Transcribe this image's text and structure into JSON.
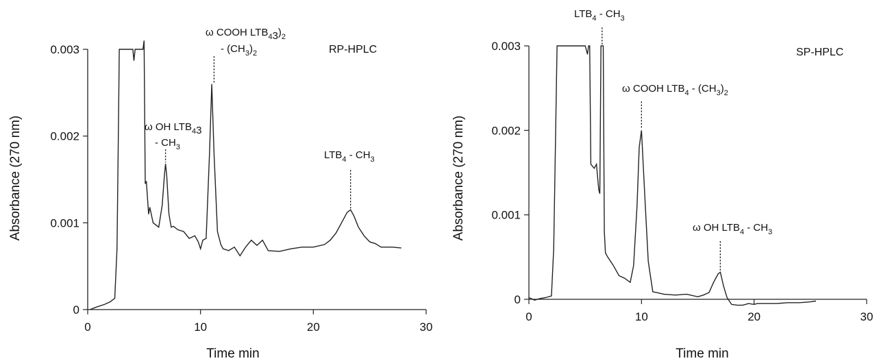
{
  "chart_data": [
    {
      "type": "line",
      "title": "RP-HPLC",
      "xlabel": "Time min",
      "ylabel": "Absorbance (270 nm)",
      "xlim": [
        0,
        30
      ],
      "ylim": [
        0,
        0.003
      ],
      "xticks": [
        "0",
        "10",
        "20",
        "30"
      ],
      "yticks": [
        "0",
        "0.001",
        "0.002",
        "0.003"
      ],
      "grid": false,
      "legend": "none",
      "line_color": "#222222",
      "series": [
        {
          "x": [
            0.2,
            0.8,
            1.5,
            2.0,
            2.4,
            2.6,
            2.75,
            2.8,
            3.0,
            3.5,
            4.0,
            4.1,
            4.2,
            4.3,
            4.6,
            4.9,
            5.0,
            5.1,
            5.2,
            5.4,
            5.5,
            5.8,
            6.0,
            6.3,
            6.6,
            6.8,
            6.9,
            7.0,
            7.2,
            7.4,
            7.6,
            8.0,
            8.5,
            9.0,
            9.5,
            9.8,
            10.0,
            10.2,
            10.5,
            10.8,
            11.0,
            11.2,
            11.5,
            11.8,
            12.0,
            12.5,
            13.0,
            13.5,
            14.0,
            14.5,
            15.0,
            15.5,
            16.0,
            17.0,
            18.0,
            19.0,
            20.0,
            21.0,
            21.5,
            22.0,
            22.5,
            23.0,
            23.3,
            23.6,
            24.0,
            24.5,
            25.0,
            25.5,
            26.0,
            27.0,
            27.8
          ],
          "y": [
            0.0,
            3e-05,
            6e-05,
            9e-05,
            0.00013,
            0.0007,
            0.0024,
            0.003,
            0.003,
            0.003,
            0.003,
            0.00287,
            0.003,
            0.003,
            0.003,
            0.003,
            0.0031,
            0.00145,
            0.00148,
            0.0011,
            0.00118,
            0.001,
            0.00098,
            0.00095,
            0.0012,
            0.00155,
            0.00168,
            0.00155,
            0.0011,
            0.00095,
            0.00096,
            0.00092,
            0.0009,
            0.00082,
            0.00085,
            0.00078,
            0.0007,
            0.0008,
            0.00082,
            0.0018,
            0.0026,
            0.0018,
            0.0009,
            0.00075,
            0.0007,
            0.00068,
            0.00072,
            0.00062,
            0.00072,
            0.0008,
            0.00074,
            0.0008,
            0.00068,
            0.00067,
            0.0007,
            0.00072,
            0.00072,
            0.00075,
            0.0008,
            0.00088,
            0.001,
            0.00112,
            0.00115,
            0.00108,
            0.00095,
            0.00085,
            0.00078,
            0.00076,
            0.00072,
            0.00072,
            0.00071
          ]
        }
      ],
      "annotations": [
        {
          "text": "ω COOH  LTB",
          "sub": "4",
          "line2": "- (CH",
          "sub2": "3",
          "tail2": ")",
          "sub3": "2",
          "x": 11.2,
          "peak_y": 0.0026
        },
        {
          "text": "ω OH  LTB",
          "sub": "4",
          "line2": "- CH",
          "sub2": "3",
          "x": 6.9,
          "peak_y": 0.00168
        },
        {
          "text": "LTB",
          "sub": "4",
          "tail": " - CH",
          "sub2": "3",
          "x": 23.3,
          "peak_y": 0.00115
        }
      ]
    },
    {
      "type": "line",
      "title": "SP-HPLC",
      "xlabel": "Time min",
      "ylabel": "Absorbance (270 nm)",
      "xlim": [
        0,
        30
      ],
      "ylim": [
        0,
        0.003
      ],
      "xticks": [
        "0",
        "10",
        "20",
        "30"
      ],
      "yticks": [
        "0",
        "0.001",
        "0.002",
        "0.003"
      ],
      "grid": false,
      "legend": "none",
      "line_color": "#222222",
      "series": [
        {
          "x": [
            0.0,
            0.5,
            1.0,
            1.5,
            2.0,
            2.2,
            2.5,
            3.0,
            3.5,
            4.0,
            4.5,
            5.0,
            5.2,
            5.3,
            5.4,
            5.5,
            5.8,
            6.0,
            6.2,
            6.3,
            6.4,
            6.5,
            6.6,
            6.7,
            6.8,
            7.0,
            7.5,
            8.0,
            8.5,
            9.0,
            9.3,
            9.6,
            9.8,
            10.0,
            10.3,
            10.6,
            11.0,
            12.0,
            13.0,
            14.0,
            15.0,
            15.5,
            16.0,
            16.4,
            16.8,
            17.0,
            17.3,
            17.6,
            18.0,
            18.5,
            19.0,
            19.5,
            20.0,
            20.3,
            21.0,
            22.0,
            23.0,
            24.0,
            25.0,
            25.5
          ],
          "y": [
            2e-05,
            -1e-05,
            1e-05,
            2e-05,
            4e-05,
            0.0006,
            0.003,
            0.003,
            0.003,
            0.003,
            0.003,
            0.003,
            0.0029,
            0.003,
            0.003,
            0.0016,
            0.00155,
            0.0016,
            0.0013,
            0.00125,
            0.003,
            0.003,
            0.003,
            0.0008,
            0.00055,
            0.0005,
            0.0004,
            0.00028,
            0.00025,
            0.0002,
            0.0004,
            0.0011,
            0.0018,
            0.002,
            0.0012,
            0.00045,
            9e-05,
            6e-05,
            5e-05,
            6e-05,
            3e-05,
            5e-05,
            8e-05,
            0.0002,
            0.0003,
            0.00032,
            0.00015,
            2e-05,
            -6e-05,
            -7e-05,
            -7e-05,
            -5e-05,
            -6e-05,
            -5e-05,
            -5e-05,
            -5e-05,
            -4e-05,
            -4e-05,
            -3e-05,
            -2e-05
          ]
        }
      ],
      "annotations": [
        {
          "text": "LTB",
          "sub": "4",
          "tail": " - CH",
          "sub2": "3",
          "x": 6.5,
          "peak_y": 0.003
        },
        {
          "text": "ω COOH  LTB",
          "sub": "4",
          "tail": " -  (CH",
          "sub2": "3",
          "tail2": ")",
          "sub3": "2",
          "x": 10.0,
          "peak_y": 0.002
        },
        {
          "text": "ω OH  LTB",
          "sub": "4",
          "tail": " - CH",
          "sub2": "3",
          "x": 17.0,
          "peak_y": 0.00032
        }
      ]
    }
  ]
}
